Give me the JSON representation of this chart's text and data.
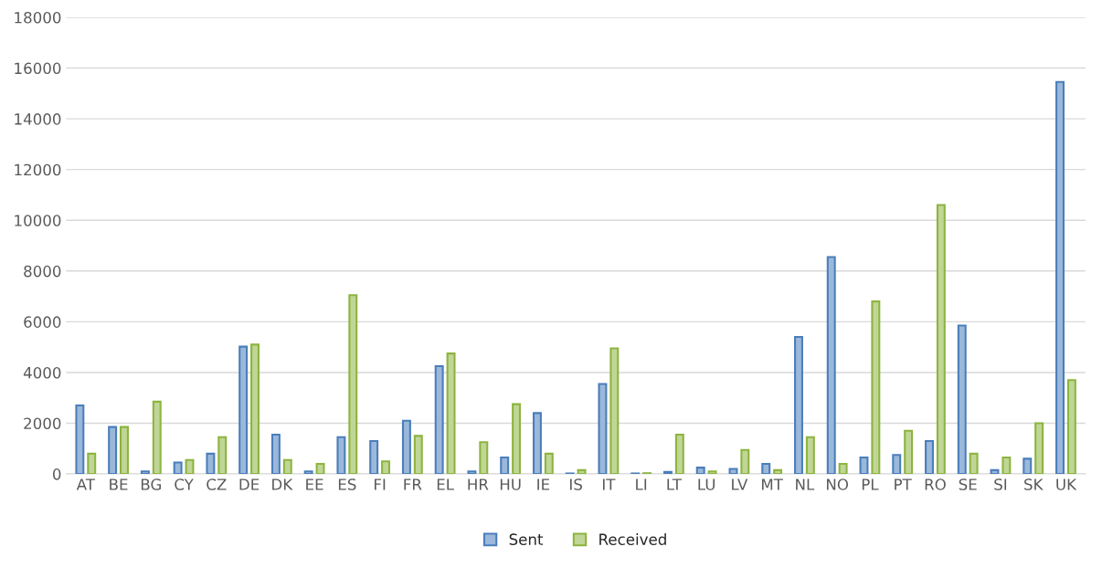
{
  "chart_data": {
    "type": "bar",
    "categories": [
      "AT",
      "BE",
      "BG",
      "CY",
      "CZ",
      "DE",
      "DK",
      "EE",
      "ES",
      "FI",
      "FR",
      "EL",
      "HR",
      "HU",
      "IE",
      "IS",
      "IT",
      "LI",
      "LT",
      "LU",
      "LV",
      "MT",
      "NL",
      "NO",
      "PL",
      "PT",
      "RO",
      "SE",
      "SI",
      "SK",
      "UK"
    ],
    "series": [
      {
        "name": "Sent",
        "color": "#4a7ebb",
        "values": [
          2700,
          1850,
          100,
          450,
          800,
          5020,
          1550,
          100,
          1450,
          1300,
          2100,
          4250,
          100,
          650,
          2400,
          20,
          3550,
          20,
          80,
          250,
          200,
          400,
          5400,
          8550,
          650,
          750,
          1300,
          5850,
          150,
          600,
          15450
        ]
      },
      {
        "name": "Received",
        "color": "#8db440",
        "values": [
          800,
          1850,
          2850,
          550,
          1450,
          5100,
          550,
          400,
          7050,
          500,
          1500,
          4750,
          1250,
          2750,
          800,
          150,
          4950,
          30,
          1550,
          100,
          950,
          150,
          1450,
          400,
          6800,
          1700,
          10600,
          800,
          650,
          2000,
          3700
        ]
      }
    ],
    "ylim": [
      0,
      18000
    ],
    "yticks": [
      0,
      2000,
      4000,
      6000,
      8000,
      10000,
      12000,
      14000,
      16000,
      18000
    ],
    "grid": "y",
    "legend": "bottom"
  }
}
